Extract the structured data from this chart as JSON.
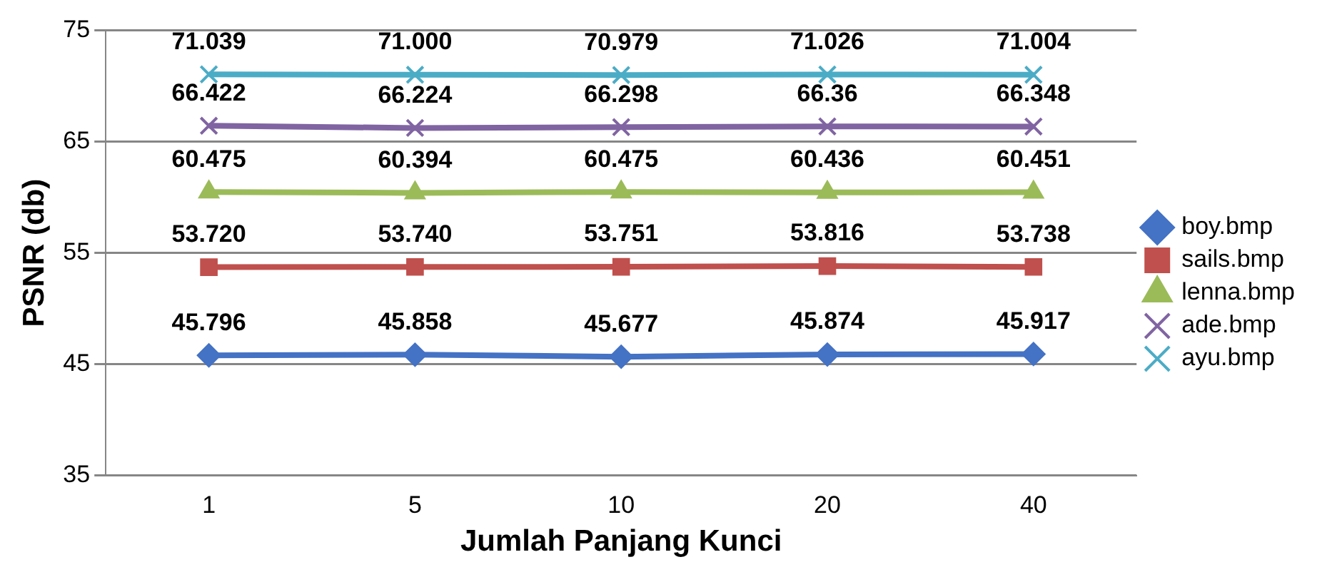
{
  "chart_data": {
    "type": "line",
    "xlabel": "Jumlah Panjang Kunci",
    "ylabel": "PSNR (db)",
    "categories": [
      "1",
      "5",
      "10",
      "20",
      "40"
    ],
    "ylim": [
      35,
      75
    ],
    "yticks": [
      35,
      45,
      55,
      65,
      75
    ],
    "grid": "y",
    "legend": "right",
    "series": [
      {
        "name": "boy.bmp",
        "color": "#4472c4",
        "marker": "diamond",
        "values": [
          45.796,
          45.858,
          45.677,
          45.874,
          45.917
        ],
        "value_labels": [
          "45.796",
          "45.858",
          "45.677",
          "45.874",
          "45.917"
        ]
      },
      {
        "name": "sails.bmp",
        "color": "#c0504d",
        "marker": "square",
        "values": [
          53.72,
          53.74,
          53.751,
          53.816,
          53.738
        ],
        "value_labels": [
          "53.720",
          "53.740",
          "53.751",
          "53.816",
          "53.738"
        ]
      },
      {
        "name": "lenna.bmp",
        "color": "#9bbb59",
        "marker": "triangle",
        "values": [
          60.475,
          60.394,
          60.475,
          60.436,
          60.451
        ],
        "value_labels": [
          "60.475",
          "60.394",
          "60.475",
          "60.436",
          "60.451"
        ]
      },
      {
        "name": "ade.bmp",
        "color": "#8064a2",
        "marker": "cross",
        "values": [
          66.422,
          66.224,
          66.298,
          66.36,
          66.348
        ],
        "value_labels": [
          "66.422",
          "66.224",
          "66.298",
          "66.36",
          "66.348"
        ]
      },
      {
        "name": "ayu.bmp",
        "color": "#4bacc6",
        "marker": "cross",
        "values": [
          71.039,
          71.0,
          70.979,
          71.026,
          71.004
        ],
        "value_labels": [
          "71.039",
          "71.000",
          "70.979",
          "71.026",
          "71.004"
        ]
      }
    ]
  }
}
